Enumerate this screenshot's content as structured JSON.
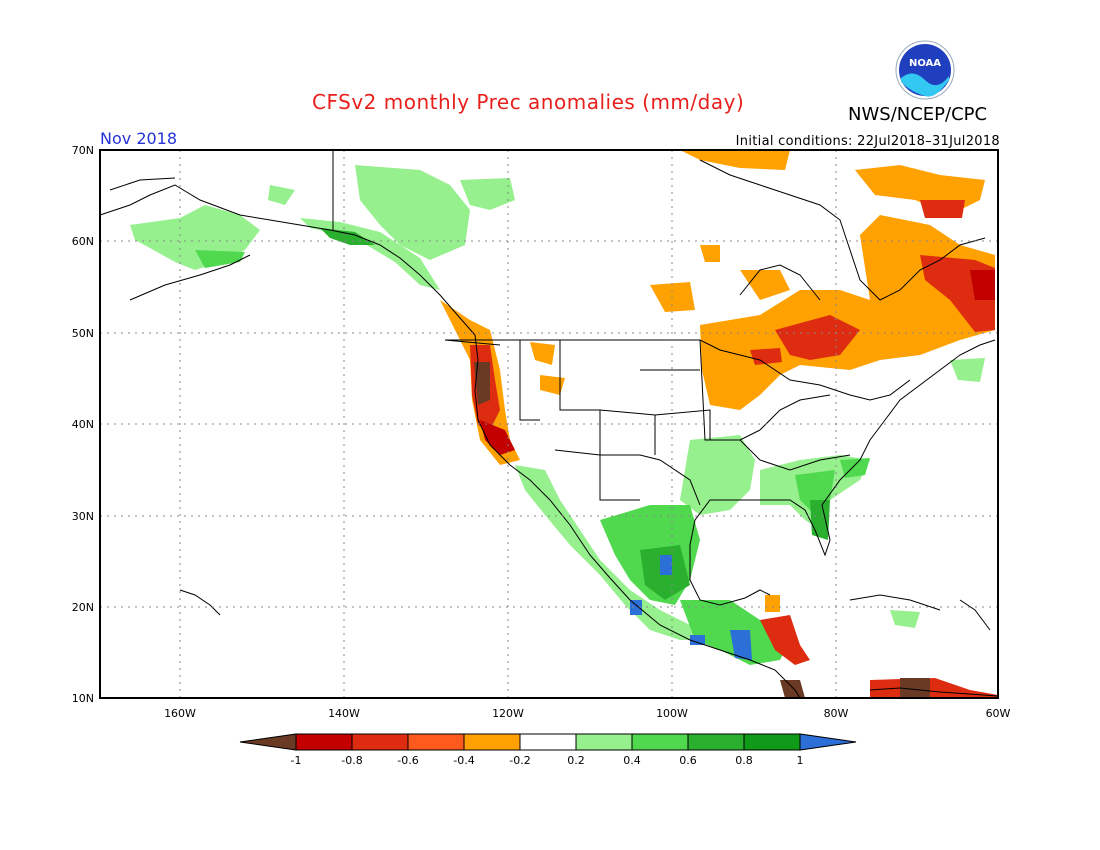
{
  "header": {
    "title": "CFSv2 monthly Prec anomalies (mm/day)",
    "org": "NWS/NCEP/CPC",
    "month": "Nov 2018",
    "initial_conditions": "Initial conditions: 22Jul2018–31Jul2018",
    "logo_text": "NOAA"
  },
  "axes": {
    "lat_labels": [
      "70N",
      "60N",
      "50N",
      "40N",
      "30N",
      "20N",
      "10N"
    ],
    "lon_labels": [
      "160W",
      "140W",
      "120W",
      "100W",
      "80W",
      "60W"
    ]
  },
  "colorbar": {
    "labels": [
      "-1",
      "-0.8",
      "-0.6",
      "-0.4",
      "-0.2",
      "0.2",
      "0.4",
      "0.6",
      "0.8",
      "1"
    ],
    "colors": [
      "#6b3a25",
      "#c20000",
      "#de2c10",
      "#ff5a1e",
      "#ffa100",
      "#ffffff",
      "#96f08e",
      "#50d84e",
      "#2ab02e",
      "#0f9a1a",
      "#2c6fd6"
    ]
  }
}
